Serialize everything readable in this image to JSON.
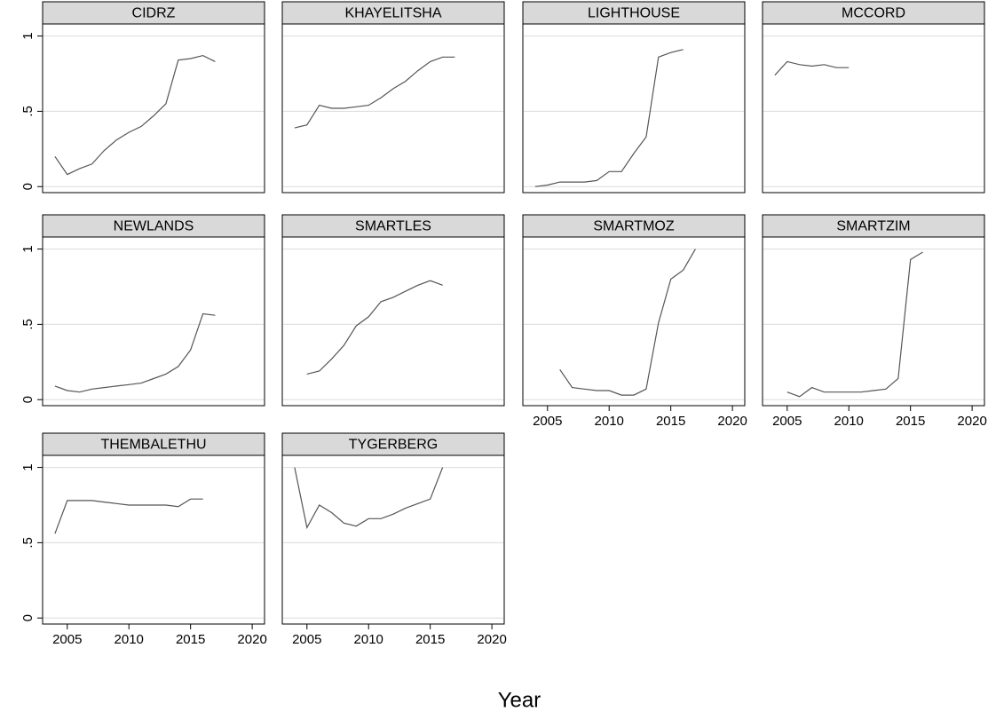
{
  "x_label": "Year",
  "xlim": [
    2003,
    2021
  ],
  "xticks": [
    2005,
    2010,
    2015,
    2020
  ],
  "ylim": [
    -0.04,
    1.08
  ],
  "yticks": [
    0,
    {
      "value": 0.5,
      "label": ".5"
    },
    1
  ],
  "grid": true,
  "color": "#555555",
  "chart_data": [
    {
      "type": "line",
      "title": "CIDRZ",
      "x": [
        2004,
        2005,
        2006,
        2007,
        2008,
        2009,
        2010,
        2011,
        2012,
        2013,
        2014,
        2015,
        2016,
        2017
      ],
      "values": [
        0.2,
        0.08,
        0.12,
        0.15,
        0.24,
        0.31,
        0.36,
        0.4,
        0.47,
        0.55,
        0.84,
        0.85,
        0.87,
        0.83
      ]
    },
    {
      "type": "line",
      "title": "KHAYELITSHA",
      "x": [
        2004,
        2005,
        2006,
        2007,
        2008,
        2009,
        2010,
        2011,
        2012,
        2013,
        2014,
        2015,
        2016,
        2017
      ],
      "values": [
        0.39,
        0.41,
        0.54,
        0.52,
        0.52,
        0.53,
        0.54,
        0.59,
        0.65,
        0.7,
        0.77,
        0.83,
        0.86,
        0.86
      ]
    },
    {
      "type": "line",
      "title": "LIGHTHOUSE",
      "x": [
        2004,
        2005,
        2006,
        2007,
        2008,
        2009,
        2010,
        2011,
        2012,
        2013,
        2014,
        2015,
        2016
      ],
      "values": [
        0.0,
        0.01,
        0.03,
        0.03,
        0.03,
        0.04,
        0.1,
        0.1,
        0.22,
        0.33,
        0.86,
        0.89,
        0.91
      ]
    },
    {
      "type": "line",
      "title": "MCCORD",
      "x": [
        2004,
        2005,
        2006,
        2007,
        2008,
        2009,
        2010
      ],
      "values": [
        0.74,
        0.83,
        0.81,
        0.8,
        0.81,
        0.79,
        0.79
      ]
    },
    {
      "type": "line",
      "title": "NEWLANDS",
      "x": [
        2004,
        2005,
        2006,
        2007,
        2008,
        2009,
        2010,
        2011,
        2012,
        2013,
        2014,
        2015,
        2016,
        2017
      ],
      "values": [
        0.09,
        0.06,
        0.05,
        0.07,
        0.08,
        0.09,
        0.1,
        0.11,
        0.14,
        0.17,
        0.22,
        0.33,
        0.57,
        0.56
      ]
    },
    {
      "type": "line",
      "title": "SMARTLES",
      "x": [
        2005,
        2006,
        2007,
        2008,
        2009,
        2010,
        2011,
        2012,
        2013,
        2014,
        2015,
        2016
      ],
      "values": [
        0.17,
        0.19,
        0.27,
        0.36,
        0.49,
        0.55,
        0.65,
        0.68,
        0.72,
        0.76,
        0.79,
        0.76
      ]
    },
    {
      "type": "line",
      "title": "SMARTMOZ",
      "x": [
        2006,
        2007,
        2008,
        2009,
        2010,
        2011,
        2012,
        2013,
        2014,
        2015,
        2016,
        2017
      ],
      "values": [
        0.2,
        0.08,
        0.07,
        0.06,
        0.06,
        0.03,
        0.03,
        0.07,
        0.51,
        0.8,
        0.86,
        1.0
      ]
    },
    {
      "type": "line",
      "title": "SMARTZIM",
      "x": [
        2005,
        2006,
        2007,
        2008,
        2009,
        2010,
        2011,
        2012,
        2013,
        2014,
        2015,
        2016
      ],
      "values": [
        0.05,
        0.02,
        0.08,
        0.05,
        0.05,
        0.05,
        0.05,
        0.06,
        0.07,
        0.14,
        0.93,
        0.98
      ]
    },
    {
      "type": "line",
      "title": "THEMBALETHU",
      "x": [
        2004,
        2005,
        2006,
        2007,
        2008,
        2009,
        2010,
        2011,
        2012,
        2013,
        2014,
        2015,
        2016
      ],
      "values": [
        0.56,
        0.78,
        0.78,
        0.78,
        0.77,
        0.76,
        0.75,
        0.75,
        0.75,
        0.75,
        0.74,
        0.79,
        0.79
      ]
    },
    {
      "type": "line",
      "title": "TYGERBERG",
      "x": [
        2004,
        2005,
        2006,
        2007,
        2008,
        2009,
        2010,
        2011,
        2012,
        2013,
        2014,
        2015,
        2016
      ],
      "values": [
        1.0,
        0.6,
        0.75,
        0.7,
        0.63,
        0.61,
        0.66,
        0.66,
        0.69,
        0.73,
        0.76,
        0.79,
        1.0
      ]
    }
  ]
}
